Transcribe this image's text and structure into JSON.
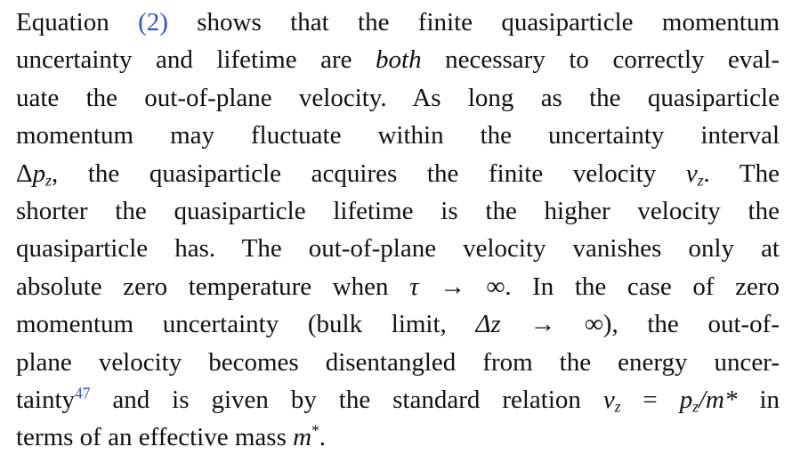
{
  "paragraph": {
    "l1": {
      "pre": "Equation ",
      "eqref": "(2)",
      "post": " shows that the finite quasiparticle momentum"
    },
    "l2": {
      "pre": "uncertainty and lifetime are ",
      "emph": "both",
      "post": " necessary to correctly eval-"
    },
    "l3": "uate the out-of-plane velocity. As long as the quasiparticle",
    "l4": "momentum may fluctuate within the uncertainty interval",
    "l5": {
      "delta": "Δ",
      "p": "p",
      "psub": "z",
      "mid": ", the quasiparticle acquires the finite velocity ",
      "v": "v",
      "vsub": "z",
      "post": ". The"
    },
    "l6": "shorter the quasiparticle lifetime is the higher velocity the",
    "l7": "quasiparticle has. The out-of-plane velocity vanishes only at",
    "l8": {
      "pre": "absolute zero temperature when ",
      "tau": "τ → ∞",
      "post": ". In the case of zero"
    },
    "l9": {
      "pre": "momentum uncertainty (bulk limit, ",
      "dz": "Δz → ∞",
      "post": "), the out-of-"
    },
    "l10": "plane velocity becomes disentangled from the energy uncer-",
    "l11": {
      "pre": "tainty",
      "ref": "47",
      "mid": " and is given by the standard relation ",
      "v": "v",
      "vsub": "z",
      "eq": " = ",
      "p": "p",
      "psub": "z",
      "m": "/m* ",
      "post": "in"
    },
    "l12": {
      "pre": "terms of an effective mass ",
      "m": "m",
      "star": "*",
      "post": "."
    }
  }
}
